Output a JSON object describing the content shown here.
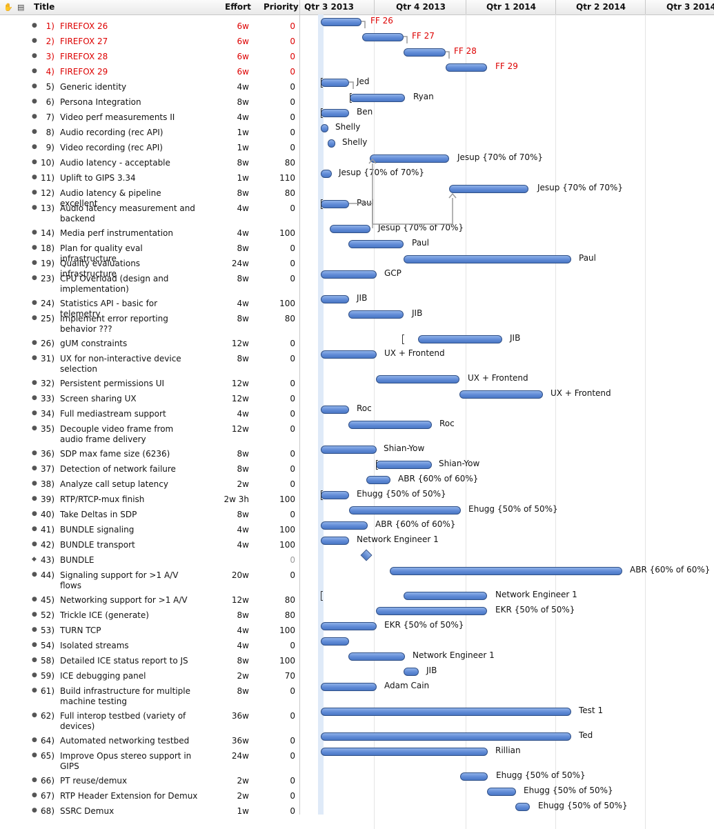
{
  "header": {
    "title_label": "Title",
    "effort_label": "Effort",
    "priority_label": "Priority",
    "quarters": [
      "Qtr 3 2013",
      "Qtr 4 2013",
      "Qtr 1 2014",
      "Qtr 2 2014",
      "Qtr 3 2014"
    ]
  },
  "colors": {
    "bar": "#5f8ad6",
    "milestone_red": "#dd0000",
    "today_band": "#dfeaf8"
  },
  "tasks": [
    {
      "num": "1)",
      "title": "FIREFOX 26",
      "effort": "6w",
      "priority": "0",
      "label": "FF 26",
      "red": true
    },
    {
      "num": "2)",
      "title": "FIREFOX 27",
      "effort": "6w",
      "priority": "0",
      "label": "FF 27",
      "red": true
    },
    {
      "num": "3)",
      "title": "FIREFOX 28",
      "effort": "6w",
      "priority": "0",
      "label": "FF 28",
      "red": true
    },
    {
      "num": "4)",
      "title": "FIREFOX 29",
      "effort": "6w",
      "priority": "0",
      "label": "FF 29",
      "red": true
    },
    {
      "num": "5)",
      "title": "Generic identity",
      "effort": "4w",
      "priority": "0",
      "label": "Jed"
    },
    {
      "num": "6)",
      "title": "Persona Integration",
      "effort": "8w",
      "priority": "0",
      "label": "Ryan"
    },
    {
      "num": "7)",
      "title": "Video perf measurements II",
      "effort": "4w",
      "priority": "0",
      "label": "Ben"
    },
    {
      "num": "8)",
      "title": "Audio recording (rec API)",
      "effort": "1w",
      "priority": "0",
      "label": "Shelly"
    },
    {
      "num": "9)",
      "title": "Video recording (rec API)",
      "effort": "1w",
      "priority": "0",
      "label": "Shelly"
    },
    {
      "num": "10)",
      "title": "Audio latency - acceptable",
      "effort": "8w",
      "priority": "80",
      "label": "Jesup {70% of 70%}"
    },
    {
      "num": "11)",
      "title": "Uplift to GIPS 3.34",
      "effort": "1w",
      "priority": "110",
      "label": "Jesup {70% of 70%}"
    },
    {
      "num": "12)",
      "title": "Audio latency & pipeline excellent",
      "effort": "8w",
      "priority": "80",
      "label": "Jesup {70% of 70%}"
    },
    {
      "num": "13)",
      "title": "Audio latency measurement and backend",
      "effort": "4w",
      "priority": "0",
      "label": "Paul"
    },
    {
      "num": "14)",
      "title": "Media perf instrumentation",
      "effort": "4w",
      "priority": "100",
      "label": "Jesup {70% of 70%}"
    },
    {
      "num": "18)",
      "title": "Plan for quality eval infrastructure",
      "effort": "8w",
      "priority": "0",
      "label": "Paul"
    },
    {
      "num": "19)",
      "title": "Quality evaluations infrastructure",
      "effort": "24w",
      "priority": "0",
      "label": "Paul"
    },
    {
      "num": "23)",
      "title": "CPU Overload (design and implementation)",
      "effort": "8w",
      "priority": "0",
      "label": "GCP"
    },
    {
      "num": "24)",
      "title": "Statistics API - basic for telemetry",
      "effort": "4w",
      "priority": "100",
      "label": "JIB"
    },
    {
      "num": "25)",
      "title": "Implement error reporting behavior ???",
      "effort": "8w",
      "priority": "80",
      "label": "JIB"
    },
    {
      "num": "26)",
      "title": "gUM constraints",
      "effort": "12w",
      "priority": "0",
      "label": "JIB"
    },
    {
      "num": "31)",
      "title": "UX for non-interactive device selection",
      "effort": "8w",
      "priority": "0",
      "label": "UX + Frontend"
    },
    {
      "num": "32)",
      "title": "Persistent permissions UI",
      "effort": "12w",
      "priority": "0",
      "label": "UX + Frontend"
    },
    {
      "num": "33)",
      "title": "Screen sharing UX",
      "effort": "12w",
      "priority": "0",
      "label": "UX + Frontend"
    },
    {
      "num": "34)",
      "title": "Full mediastream support",
      "effort": "4w",
      "priority": "0",
      "label": "Roc"
    },
    {
      "num": "35)",
      "title": "Decouple video frame from audio frame delivery",
      "effort": "12w",
      "priority": "0",
      "label": "Roc"
    },
    {
      "num": "36)",
      "title": "SDP max fame size (6236)",
      "effort": "8w",
      "priority": "0",
      "label": "Shian-Yow"
    },
    {
      "num": "37)",
      "title": "Detection of network failure",
      "effort": "8w",
      "priority": "0",
      "label": "Shian-Yow"
    },
    {
      "num": "38)",
      "title": "Analyze call setup latency",
      "effort": "2w",
      "priority": "0",
      "label": "ABR {60% of 60%}"
    },
    {
      "num": "39)",
      "title": "RTP/RTCP-mux finish",
      "effort": "2w 3h",
      "priority": "100",
      "label": "Ehugg {50% of 50%}"
    },
    {
      "num": "40)",
      "title": "Take Deltas in SDP",
      "effort": "8w",
      "priority": "0",
      "label": "Ehugg {50% of 50%}"
    },
    {
      "num": "41)",
      "title": "BUNDLE signaling",
      "effort": "4w",
      "priority": "100",
      "label": "ABR {60% of 60%}"
    },
    {
      "num": "42)",
      "title": "BUNDLE transport",
      "effort": "4w",
      "priority": "100",
      "label": "Network Engineer 1"
    },
    {
      "num": "43)",
      "title": "BUNDLE",
      "effort": "",
      "priority": "0",
      "label": "",
      "milestone": true
    },
    {
      "num": "44)",
      "title": "Signaling support for >1 A/V flows",
      "effort": "20w",
      "priority": "0",
      "label": "ABR {60% of 60%}"
    },
    {
      "num": "45)",
      "title": "Networking support for >1 A/V",
      "effort": "12w",
      "priority": "80",
      "label": "Network Engineer 1"
    },
    {
      "num": "52)",
      "title": "Trickle ICE (generate)",
      "effort": "8w",
      "priority": "80",
      "label": "EKR {50% of 50%}"
    },
    {
      "num": "53)",
      "title": "TURN TCP",
      "effort": "4w",
      "priority": "100",
      "label": "EKR {50% of 50%}"
    },
    {
      "num": "54)",
      "title": "Isolated streams",
      "effort": "4w",
      "priority": "0",
      "label": ""
    },
    {
      "num": "58)",
      "title": "Detailed ICE status report to JS",
      "effort": "8w",
      "priority": "100",
      "label": "Network Engineer 1"
    },
    {
      "num": "59)",
      "title": "ICE debugging panel",
      "effort": "2w",
      "priority": "70",
      "label": "JIB"
    },
    {
      "num": "61)",
      "title": "Build infrastructure for multiple machine testing",
      "effort": "8w",
      "priority": "0",
      "label": "Adam Cain"
    },
    {
      "num": "62)",
      "title": "Full interop testbed (variety of devices)",
      "effort": "36w",
      "priority": "0",
      "label": "Test 1"
    },
    {
      "num": "64)",
      "title": "Automated networking testbed",
      "effort": "36w",
      "priority": "0",
      "label": "Ted"
    },
    {
      "num": "65)",
      "title": "Improve Opus stereo support in GIPS",
      "effort": "24w",
      "priority": "0",
      "label": "Rillian"
    },
    {
      "num": "66)",
      "title": "PT reuse/demux",
      "effort": "2w",
      "priority": "0",
      "label": "Ehugg {50% of 50%}"
    },
    {
      "num": "67)",
      "title": "RTP Header Extension for Demux",
      "effort": "2w",
      "priority": "0",
      "label": "Ehugg {50% of 50%}"
    },
    {
      "num": "68)",
      "title": "SSRC Demux",
      "effort": "1w",
      "priority": "0",
      "label": "Ehugg {50% of 50%}"
    }
  ]
}
